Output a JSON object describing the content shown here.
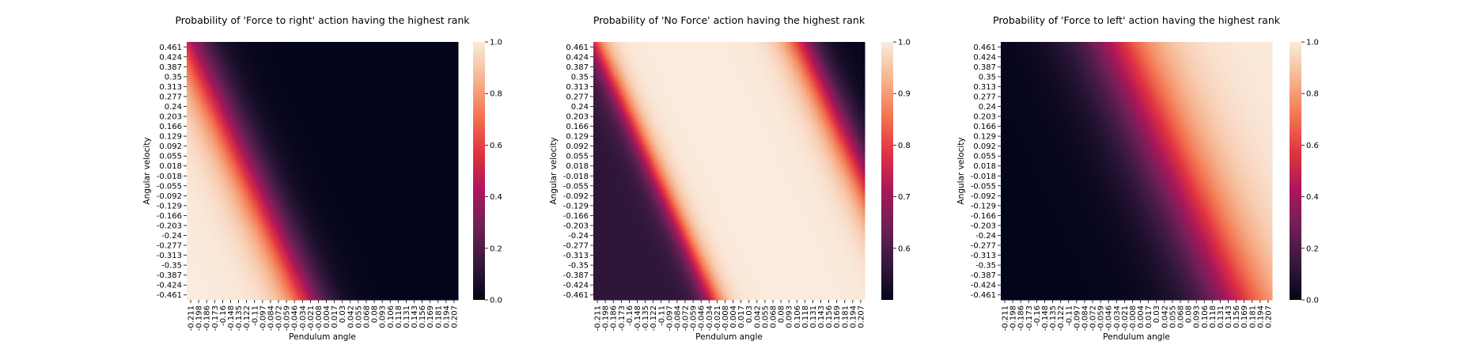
{
  "figure": {
    "background": "#ffffff",
    "colormap": "rocket",
    "colormap_stops": [
      "#03051a",
      "#36193e",
      "#701f57",
      "#ad1759",
      "#e13342",
      "#f37651",
      "#f6b48f",
      "#faebdd"
    ]
  },
  "chart_data": [
    {
      "type": "heatmap",
      "title": "Probability of 'Force to right' action having the highest rank",
      "xlabel": "Pendulum angle",
      "ylabel": "Angular velocity",
      "x_ticks": [
        "-0.211",
        "-0.198",
        "-0.186",
        "-0.173",
        "-0.16",
        "-0.148",
        "-0.135",
        "-0.122",
        "-0.11",
        "-0.097",
        "-0.084",
        "-0.072",
        "-0.059",
        "-0.046",
        "-0.034",
        "-0.021",
        "-0.008",
        "0.004",
        "0.017",
        "0.03",
        "0.042",
        "0.055",
        "0.068",
        "0.08",
        "0.093",
        "0.106",
        "0.118",
        "0.131",
        "0.143",
        "0.156",
        "0.169",
        "0.181",
        "0.194",
        "0.207"
      ],
      "y_ticks": [
        "0.461",
        "0.424",
        "0.387",
        "0.35",
        "0.313",
        "0.277",
        "0.24",
        "0.203",
        "0.166",
        "0.129",
        "0.092",
        "0.055",
        "0.018",
        "-0.018",
        "-0.055",
        "-0.092",
        "-0.129",
        "-0.166",
        "-0.203",
        "-0.24",
        "-0.277",
        "-0.313",
        "-0.35",
        "-0.387",
        "-0.424",
        "-0.461"
      ],
      "grid_cols": 34,
      "grid_rows": 26,
      "value_model": {
        "kind": "diagonal_band",
        "description": "probability as a function of angle and angular velocity; boundary where angle ≈ a + b·velocity",
        "a": -0.118,
        "b": -0.198,
        "width": 0.022,
        "falling_to_right": true,
        "vmin_value": 0.0,
        "vmax_value": 1.0
      },
      "colorbar": {
        "vmin": 0.0,
        "vmax": 1.0,
        "ticks": [
          "0.0",
          "0.2",
          "0.4",
          "0.6",
          "0.8",
          "1.0"
        ],
        "tick_values": [
          0.0,
          0.2,
          0.4,
          0.6,
          0.8,
          1.0
        ]
      }
    },
    {
      "type": "heatmap",
      "title": "Probability of 'No Force' action having the highest rank",
      "xlabel": "Pendulum angle",
      "ylabel": "Angular velocity",
      "x_ticks": [
        "-0.211",
        "-0.198",
        "-0.186",
        "-0.173",
        "-0.16",
        "-0.148",
        "-0.135",
        "-0.122",
        "-0.11",
        "-0.097",
        "-0.084",
        "-0.072",
        "-0.059",
        "-0.046",
        "-0.034",
        "-0.021",
        "-0.008",
        "0.004",
        "0.017",
        "0.03",
        "0.042",
        "0.055",
        "0.068",
        "0.08",
        "0.093",
        "0.106",
        "0.118",
        "0.131",
        "0.143",
        "0.156",
        "0.169",
        "0.181",
        "0.194",
        "0.207"
      ],
      "y_ticks": [
        "0.461",
        "0.424",
        "0.387",
        "0.35",
        "0.313",
        "0.277",
        "0.24",
        "0.203",
        "0.166",
        "0.129",
        "0.092",
        "0.055",
        "0.018",
        "-0.018",
        "-0.055",
        "-0.092",
        "-0.129",
        "-0.166",
        "-0.203",
        "-0.24",
        "-0.277",
        "-0.313",
        "-0.35",
        "-0.387",
        "-0.424",
        "-0.461"
      ],
      "grid_cols": 34,
      "grid_rows": 26,
      "value_model": {
        "kind": "two_boundaries",
        "description": "high in the middle diagonal band, lower on both sides",
        "lower_boundary": {
          "a": -0.118,
          "b": -0.198,
          "width": 0.012,
          "low_value": 0.56
        },
        "upper_boundary": {
          "a": 0.2,
          "b": -0.198,
          "width": 0.018,
          "low_value": 0.5
        },
        "high_value": 1.0
      },
      "colorbar": {
        "vmin": 0.5,
        "vmax": 1.0,
        "ticks": [
          "0.6",
          "0.7",
          "0.8",
          "0.9",
          "1.0"
        ],
        "tick_values": [
          0.6,
          0.7,
          0.8,
          0.9,
          1.0
        ]
      }
    },
    {
      "type": "heatmap",
      "title": "Probability of 'Force to left' action having the highest rank",
      "xlabel": "Pendulum angle",
      "ylabel": "Angular velocity",
      "x_ticks": [
        "-0.211",
        "-0.198",
        "-0.186",
        "-0.173",
        "-0.16",
        "-0.148",
        "-0.135",
        "-0.122",
        "-0.11",
        "-0.097",
        "-0.084",
        "-0.072",
        "-0.059",
        "-0.046",
        "-0.034",
        "-0.021",
        "-0.008",
        "0.004",
        "0.017",
        "0.03",
        "0.042",
        "0.055",
        "0.068",
        "0.08",
        "0.093",
        "0.106",
        "0.118",
        "0.131",
        "0.143",
        "0.156",
        "0.169",
        "0.181",
        "0.194",
        "0.207"
      ],
      "y_ticks": [
        "0.461",
        "0.424",
        "0.387",
        "0.35",
        "0.313",
        "0.277",
        "0.24",
        "0.203",
        "0.166",
        "0.129",
        "0.092",
        "0.055",
        "0.018",
        "-0.018",
        "-0.055",
        "-0.092",
        "-0.129",
        "-0.166",
        "-0.203",
        "-0.24",
        "-0.277",
        "-0.313",
        "-0.35",
        "-0.387",
        "-0.424",
        "-0.461"
      ],
      "grid_cols": 34,
      "grid_rows": 26,
      "value_model": {
        "kind": "diagonal_band",
        "description": "probability rises across a wide diagonal boundary",
        "a": 0.06,
        "b": -0.2,
        "width": 0.04,
        "falling_to_right": false,
        "vmin_value": 0.0,
        "vmax_value": 1.0
      },
      "colorbar": {
        "vmin": 0.0,
        "vmax": 1.0,
        "ticks": [
          "0.0",
          "0.2",
          "0.4",
          "0.6",
          "0.8",
          "1.0"
        ],
        "tick_values": [
          0.0,
          0.2,
          0.4,
          0.6,
          0.8,
          1.0
        ]
      }
    }
  ]
}
